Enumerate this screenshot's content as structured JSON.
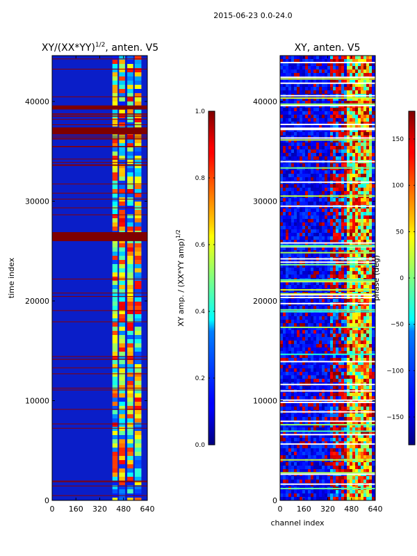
{
  "suptitle": "2015-06-23 0.0-24.0",
  "chart_data": [
    {
      "type": "heatmap",
      "title": "XY/(XX*YY)",
      "title_sup": "1/2",
      "title_suffix": ", anten. V5",
      "xlabel": "",
      "ylabel": "time index",
      "xlim": [
        0,
        640
      ],
      "ylim": [
        0,
        44600
      ],
      "xticks": [
        0,
        160,
        320,
        480,
        640
      ],
      "xtick_labels": [
        "0",
        "160",
        "320",
        "480",
        "640"
      ],
      "yticks": [
        0,
        10000,
        20000,
        30000,
        40000
      ],
      "ytick_labels": [
        "0",
        "10000",
        "20000",
        "30000",
        "40000"
      ],
      "colorbar": {
        "label": "XY amp. / (XX*YY amp)",
        "label_sup": "1/2",
        "range": [
          0.0,
          1.0
        ],
        "ticks": [
          0.0,
          0.2,
          0.4,
          0.6,
          0.8,
          1.0
        ],
        "tick_labels": [
          "0.0",
          "0.2",
          "0.4",
          "0.6",
          "0.8",
          "1.0"
        ],
        "colormap": "jet"
      },
      "saturated_bands": [
        {
          "y0": 26000,
          "y1": 26900
        },
        {
          "y0": 36700,
          "y1": 37400
        },
        {
          "y0": 39200,
          "y1": 39600
        }
      ],
      "bright_channel_ranges": [
        [
          405,
          440
        ],
        [
          450,
          490
        ],
        [
          505,
          545
        ],
        [
          555,
          600
        ]
      ]
    },
    {
      "type": "heatmap",
      "title": "XY, anten. V5",
      "xlabel": "channel index",
      "ylabel": "",
      "xlim": [
        0,
        640
      ],
      "ylim": [
        0,
        44600
      ],
      "xticks": [
        0,
        160,
        320,
        480,
        640
      ],
      "xtick_labels": [
        "0",
        "160",
        "320",
        "480",
        "640"
      ],
      "yticks": [
        0,
        10000,
        20000,
        30000,
        40000
      ],
      "ytick_labels": [
        "0",
        "10000",
        "20000",
        "30000",
        "40000"
      ],
      "colorbar": {
        "label": "phase (deg)",
        "range": [
          -180,
          180
        ],
        "ticks": [
          -150,
          -100,
          -50,
          0,
          50,
          100,
          150
        ],
        "tick_labels": [
          "−150",
          "−100",
          "−50",
          "0",
          "50",
          "100",
          "150"
        ],
        "colormap": "jet"
      },
      "bright_channel_ranges": [
        [
          405,
          440
        ],
        [
          450,
          490
        ],
        [
          505,
          545
        ],
        [
          555,
          600
        ]
      ]
    }
  ],
  "colors": {
    "jet_dark_blue": "#00007f",
    "jet_blue": "#0000ff",
    "jet_cyan": "#00ffff",
    "jet_yellow": "#ffff00",
    "jet_red": "#ff0000",
    "jet_dark_red": "#7f0000"
  }
}
